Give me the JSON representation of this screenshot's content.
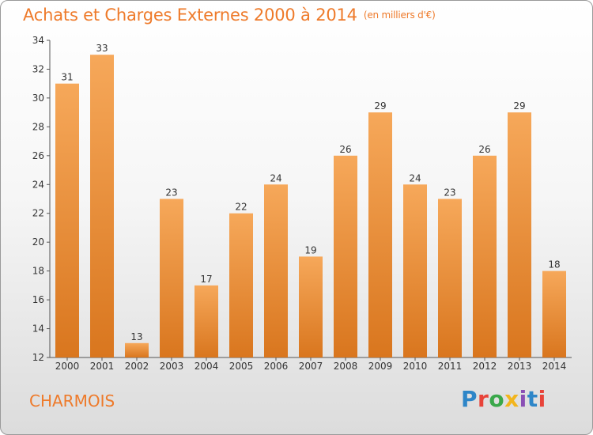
{
  "header": {
    "title": "Achats et Charges Externes 2000 à 2014",
    "unit": "(en milliers d'€)"
  },
  "footer": {
    "commune": "CHARMOIS",
    "brand": "Proxiti",
    "brand_colors": [
      "#2e86c8",
      "#e8443a",
      "#3aa84a",
      "#f2b51d",
      "#8a4fb5",
      "#2e86c8",
      "#e8443a"
    ]
  },
  "colors": {
    "bar_light": "#f6a85a",
    "bar_dark": "#d9761e",
    "accent": "#ee7a2a"
  },
  "chart_data": {
    "type": "bar",
    "categories": [
      "2000",
      "2001",
      "2002",
      "2003",
      "2004",
      "2005",
      "2006",
      "2007",
      "2008",
      "2009",
      "2010",
      "2011",
      "2012",
      "2013",
      "2014"
    ],
    "values": [
      31,
      33,
      13,
      23,
      17,
      22,
      24,
      19,
      26,
      29,
      24,
      23,
      26,
      29,
      18
    ],
    "ylim": [
      12,
      34
    ],
    "yticks": [
      12,
      14,
      16,
      18,
      20,
      22,
      24,
      26,
      28,
      30,
      32,
      34
    ],
    "grid": false,
    "data_labels": true,
    "legend": "none"
  }
}
